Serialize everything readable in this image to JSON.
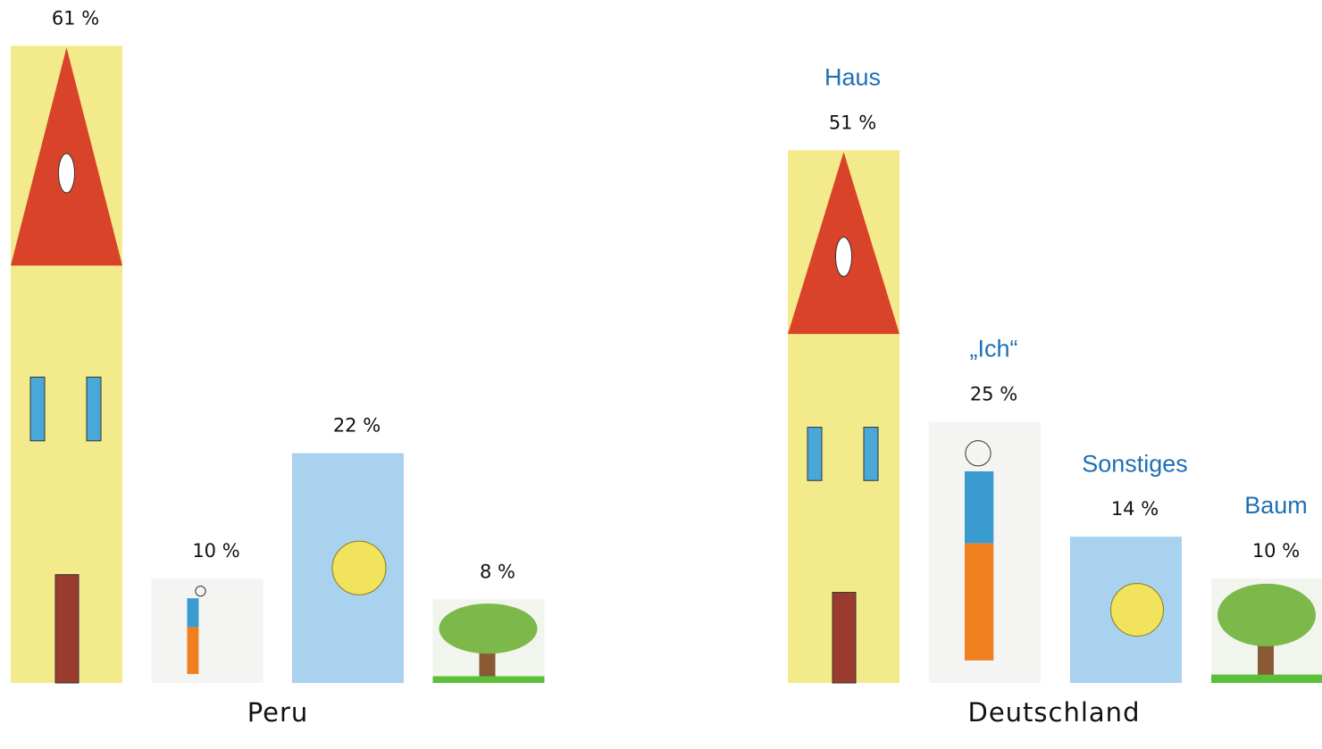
{
  "chart_data": [
    {
      "type": "bar",
      "title": "Peru",
      "categories": [
        null,
        null,
        null,
        null
      ],
      "values": [
        61,
        10,
        22,
        8
      ],
      "value_labels": [
        "61 %",
        "10 %",
        "22 %",
        "8 %"
      ],
      "colors": [
        "#f3ea8c",
        "#f4f4f2",
        "#a8d2ee",
        "#f2f4ee"
      ]
    },
    {
      "type": "bar",
      "title": "Deutschland",
      "categories": [
        "Haus",
        "„Ich“",
        "Sonstiges",
        "Baum"
      ],
      "values": [
        51,
        25,
        14,
        10
      ],
      "value_labels": [
        "51 %",
        "25 %",
        "14 %",
        "10 %"
      ],
      "colors": [
        "#f3ea8c",
        "#f4f4f2",
        "#a8d2ee",
        "#f2f4ee"
      ]
    }
  ]
}
